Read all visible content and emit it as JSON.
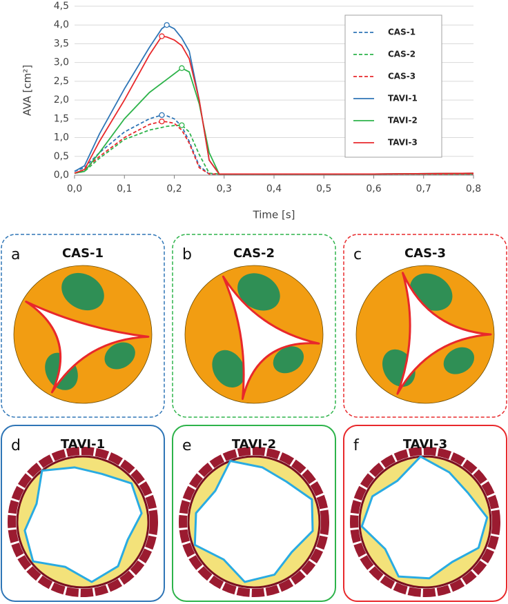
{
  "chart_data": {
    "type": "line",
    "xlabel": "Time [s]",
    "ylabel": "AVA [cm²]",
    "x": [
      0,
      0.02,
      0.05,
      0.1,
      0.15,
      0.175,
      0.185,
      0.2,
      0.215,
      0.23,
      0.25,
      0.27,
      0.29,
      0.4,
      0.6,
      0.8
    ],
    "series": [
      {
        "name": "CAS-1",
        "color": "#2e75b6",
        "dash": true,
        "values": [
          0.1,
          0.2,
          0.6,
          1.15,
          1.5,
          1.6,
          1.58,
          1.5,
          1.3,
          0.9,
          0.25,
          0.03,
          0.03,
          0.03,
          0.03,
          0.03
        ]
      },
      {
        "name": "CAS-2",
        "color": "#2db34a",
        "dash": true,
        "values": [
          0.05,
          0.1,
          0.45,
          0.95,
          1.2,
          1.27,
          1.3,
          1.32,
          1.33,
          1.15,
          0.55,
          0.05,
          0.03,
          0.03,
          0.03,
          0.03
        ]
      },
      {
        "name": "CAS-3",
        "color": "#e8282b",
        "dash": true,
        "values": [
          0.05,
          0.15,
          0.5,
          1.0,
          1.35,
          1.43,
          1.42,
          1.38,
          1.2,
          0.85,
          0.2,
          0.03,
          0.03,
          0.03,
          0.03,
          0.03
        ]
      },
      {
        "name": "TAVI-1",
        "color": "#2e75b6",
        "dash": false,
        "values": [
          0.1,
          0.25,
          1.1,
          2.3,
          3.4,
          3.9,
          4.0,
          3.9,
          3.65,
          3.3,
          2.0,
          0.4,
          0.03,
          0.03,
          0.03,
          0.05
        ]
      },
      {
        "name": "TAVI-2",
        "color": "#2db34a",
        "dash": false,
        "values": [
          0.05,
          0.1,
          0.6,
          1.5,
          2.2,
          2.45,
          2.55,
          2.7,
          2.85,
          2.75,
          1.9,
          0.6,
          0.03,
          0.03,
          0.03,
          0.05
        ]
      },
      {
        "name": "TAVI-3",
        "color": "#e8282b",
        "dash": false,
        "values": [
          0.05,
          0.15,
          0.9,
          2.0,
          3.2,
          3.7,
          3.68,
          3.6,
          3.45,
          3.1,
          2.0,
          0.4,
          0.03,
          0.03,
          0.03,
          0.05
        ]
      }
    ],
    "xlim": [
      0,
      0.8
    ],
    "xticks": [
      {
        "value": 0,
        "label": "0,0"
      },
      {
        "value": 0.1,
        "label": "0,1"
      },
      {
        "value": 0.2,
        "label": "0,2"
      },
      {
        "value": 0.3,
        "label": "0,3"
      },
      {
        "value": 0.4,
        "label": "0,4"
      },
      {
        "value": 0.5,
        "label": "0,5"
      },
      {
        "value": 0.6,
        "label": "0,6"
      },
      {
        "value": 0.7,
        "label": "0,7"
      },
      {
        "value": 0.8,
        "label": "0,8"
      }
    ],
    "ylim": [
      0,
      4.5
    ],
    "yticks": [
      {
        "value": 0,
        "label": "0,0"
      },
      {
        "value": 0.5,
        "label": "0,5"
      },
      {
        "value": 1,
        "label": "1,0"
      },
      {
        "value": 1.5,
        "label": "1,5"
      },
      {
        "value": 2,
        "label": "2,0"
      },
      {
        "value": 2.5,
        "label": "2,5"
      },
      {
        "value": 3,
        "label": "3,0"
      },
      {
        "value": 3.5,
        "label": "3,5"
      },
      {
        "value": 4,
        "label": "4,0"
      },
      {
        "value": 4.5,
        "label": "4,5"
      }
    ],
    "grid": true,
    "legend": "upper right"
  },
  "panels": [
    {
      "letter": "a",
      "title": "CAS-1",
      "color": "#2e75b6"
    },
    {
      "letter": "b",
      "title": "CAS-2",
      "color": "#2db34a"
    },
    {
      "letter": "c",
      "title": "CAS-3",
      "color": "#e8282b"
    },
    {
      "letter": "d",
      "title": "TAVI-1",
      "color": "#2e75b6"
    },
    {
      "letter": "e",
      "title": "TAVI-2",
      "color": "#2db34a"
    },
    {
      "letter": "f",
      "title": "TAVI-3",
      "color": "#e8282b"
    }
  ]
}
